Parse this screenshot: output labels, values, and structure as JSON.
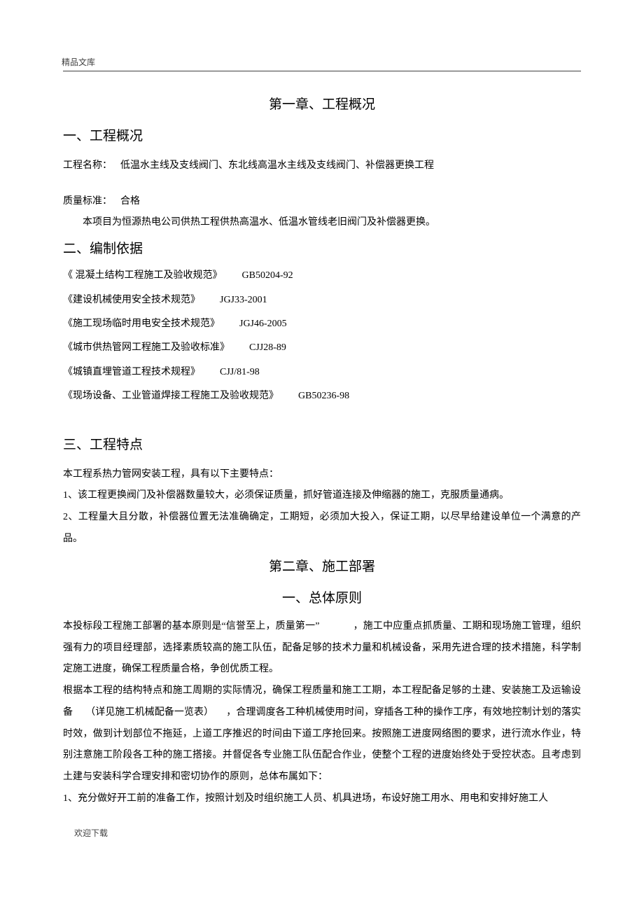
{
  "header": {
    "label": "精品文库"
  },
  "footer": {
    "label": "欢迎下载"
  },
  "chapter1": {
    "title": "第一章、工程概况",
    "section1": {
      "title": "一、工程概况",
      "projectNameLabel": "工程名称：",
      "projectNameValue": "低温水主线及支线阀门、东北线高温水主线及支线阀门、补偿器更换工程",
      "qualityLabel": "质量标准：",
      "qualityValue": "合格",
      "description": "本项目为恒源热电公司供热工程供热高温水、低温水管线老旧阀门及补偿器更换。"
    },
    "section2": {
      "title": "二、编制依据",
      "standards": [
        {
          "name": "《 混凝土结构工程施工及验收规范》",
          "code": "GB50204-92"
        },
        {
          "name": "《建设机械使用安全技术规范》",
          "code": "JGJ33-2001"
        },
        {
          "name": "《施工现场临时用电安全技术规范》",
          "code": "JGJ46-2005"
        },
        {
          "name": "《城市供热管网工程施工及验收标准》",
          "code": "CJJ28-89"
        },
        {
          "name": "《城镇直埋管道工程技术规程》",
          "code": "CJJ/81-98"
        },
        {
          "name": "《现场设备、工业管道焊接工程施工及验收规范》",
          "code": "GB50236-98"
        }
      ]
    },
    "section3": {
      "title": "三、工程特点",
      "intro": "本工程系热力管网安装工程，具有以下主要特点：",
      "point1": "1、该工程更换阀门及补偿器数量较大，必须保证质量，抓好管道连接及伸缩器的施工，克服质量通病。",
      "point2": "2、工程量大且分散，补偿器位置无法准确确定，工期短，必须加大投入，保证工期，以尽早给建设单位一个满意的产品。"
    }
  },
  "chapter2": {
    "title": "第二章、施工部署",
    "section1": {
      "title": "一、总体原则",
      "para1_a": "本投标段工程施工部署的基本原则是“信誉至上，质量第一”",
      "para1_b": "，施工中应重点抓质量、工期和现场施工管理，组织强有力的项目经理部，选择素质较高的施工队伍，配备足够的技术力量和机械设备，采用先进合理的技术措施，科学制定施工进度，确保工程质量合格，争创优质工程。",
      "para2_a": "根据本工程的结构特点和施工周期的实际情况，确保工程质量和施工工期，本工程配备足够的土建、安装施工及运输设备",
      "para2_b": "（详见施工机械配备一览表）",
      "para2_c": "，合理调度各工种机械使用时间，穿插各工种的操作工序，有效地控制计划的落实时效，做到计划部位不拖延，上道工序推迟的时间由下道工序抢回来。按照施工进度网络图的要求，进行流水作业，特别注意施工阶段各工种的施工搭接。并督促各专业施工队伍配合作业，使整个工程的进度始终处于受控状态。且考虑到土建与安装科学合理安排和密切协作的原则，总体布属如下：",
      "para3": "1、充分做好开工前的准备工作，按照计划及时组织施工人员、机具进场，布设好施工用水、用电和安排好施工人"
    }
  }
}
